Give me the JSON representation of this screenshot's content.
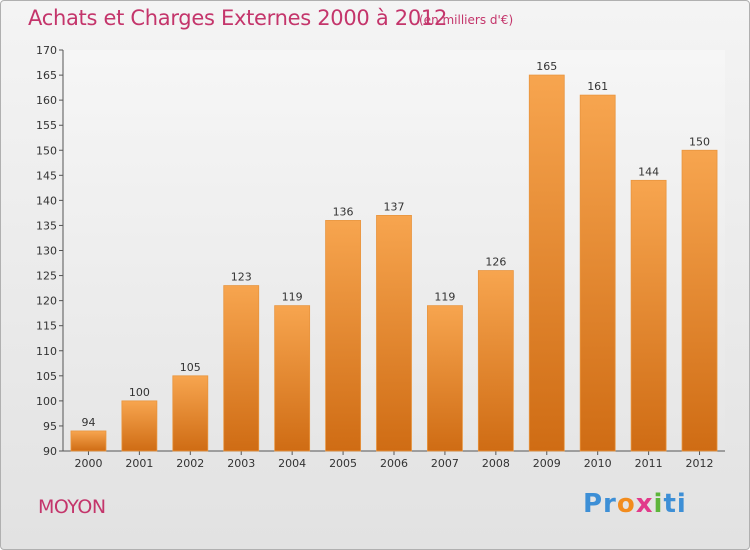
{
  "chart_data": {
    "type": "bar",
    "title": "Achats et Charges Externes 2000 à 2012",
    "subtitle": "(en milliers d'€)",
    "categories": [
      "2000",
      "2001",
      "2002",
      "2003",
      "2004",
      "2005",
      "2006",
      "2007",
      "2008",
      "2009",
      "2010",
      "2011",
      "2012"
    ],
    "values": [
      94,
      100,
      105,
      123,
      119,
      136,
      137,
      119,
      126,
      165,
      161,
      144,
      150
    ],
    "ylim": [
      90,
      170
    ],
    "yticks": [
      90,
      95,
      100,
      105,
      110,
      115,
      120,
      125,
      130,
      135,
      140,
      145,
      150,
      155,
      160,
      165,
      170
    ],
    "grid": false,
    "bar_color": "#f0923a"
  },
  "commune": "MOYON",
  "logo": {
    "parts": [
      "Pr",
      "o",
      "x",
      "i",
      "ti"
    ],
    "colors": [
      "#3d8fd6",
      "#f28c1e",
      "#e23a8a",
      "#5db53b",
      "#3d8fd6"
    ]
  }
}
